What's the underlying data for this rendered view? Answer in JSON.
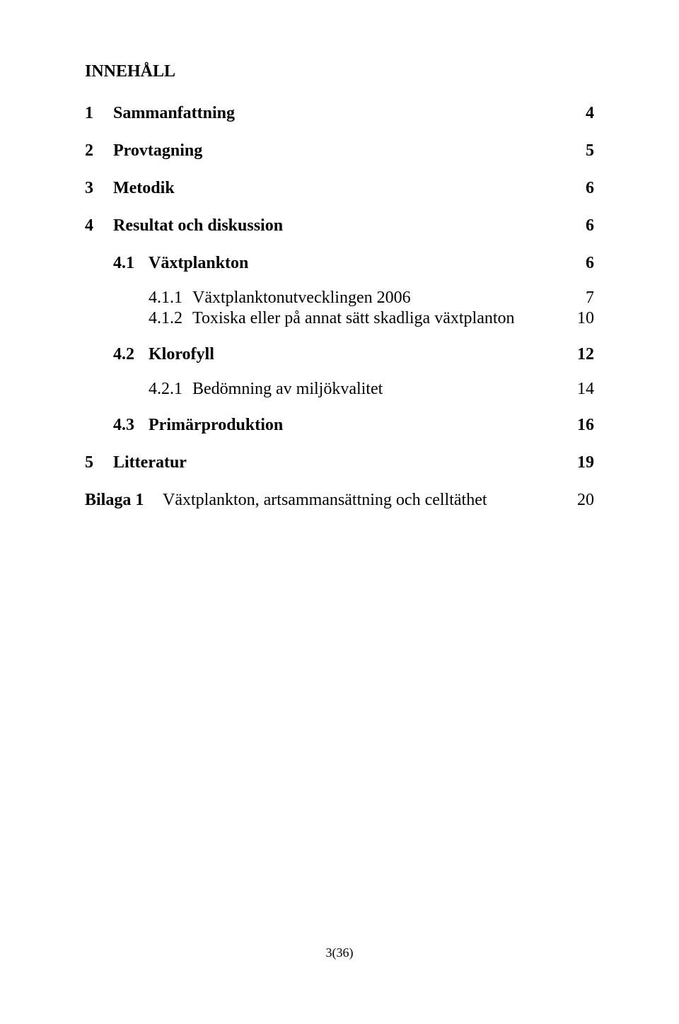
{
  "title": "INNEHÅLL",
  "entries": [
    {
      "level": 1,
      "num": "1",
      "label": "Sammanfattning",
      "page": "4"
    },
    {
      "level": 1,
      "num": "2",
      "label": "Provtagning",
      "page": "5"
    },
    {
      "level": 1,
      "num": "3",
      "label": "Metodik",
      "page": "6"
    },
    {
      "level": 1,
      "num": "4",
      "label": "Resultat och diskussion",
      "page": "6"
    },
    {
      "level": 2,
      "num": "4.1",
      "label": "Växtplankton",
      "page": "6"
    },
    {
      "level": 3,
      "num": "4.1.1",
      "label": "Växtplanktonutvecklingen 2006",
      "page": "7"
    },
    {
      "level": 3,
      "num": "4.1.2",
      "label": "Toxiska eller på annat sätt skadliga växtplanton",
      "page": "10"
    },
    {
      "level": 2,
      "num": "4.2",
      "label": "Klorofyll",
      "page": "12"
    },
    {
      "level": 3,
      "num": "4.2.1",
      "label": "Bedömning av miljökvalitet",
      "page": "14"
    },
    {
      "level": 2,
      "num": "4.3",
      "label": "Primärproduktion",
      "page": "16"
    },
    {
      "level": 1,
      "num": "5",
      "label": "Litteratur",
      "page": "19"
    }
  ],
  "appendix": {
    "num": "Bilaga 1",
    "label": "Växtplankton, artsammansättning och celltäthet",
    "page": "20"
  },
  "footer": "3(36)",
  "colors": {
    "text": "#000000",
    "background": "#ffffff"
  },
  "typography": {
    "family": "Times New Roman, serif",
    "title_size_pt": 18,
    "body_size_pt": 18
  }
}
